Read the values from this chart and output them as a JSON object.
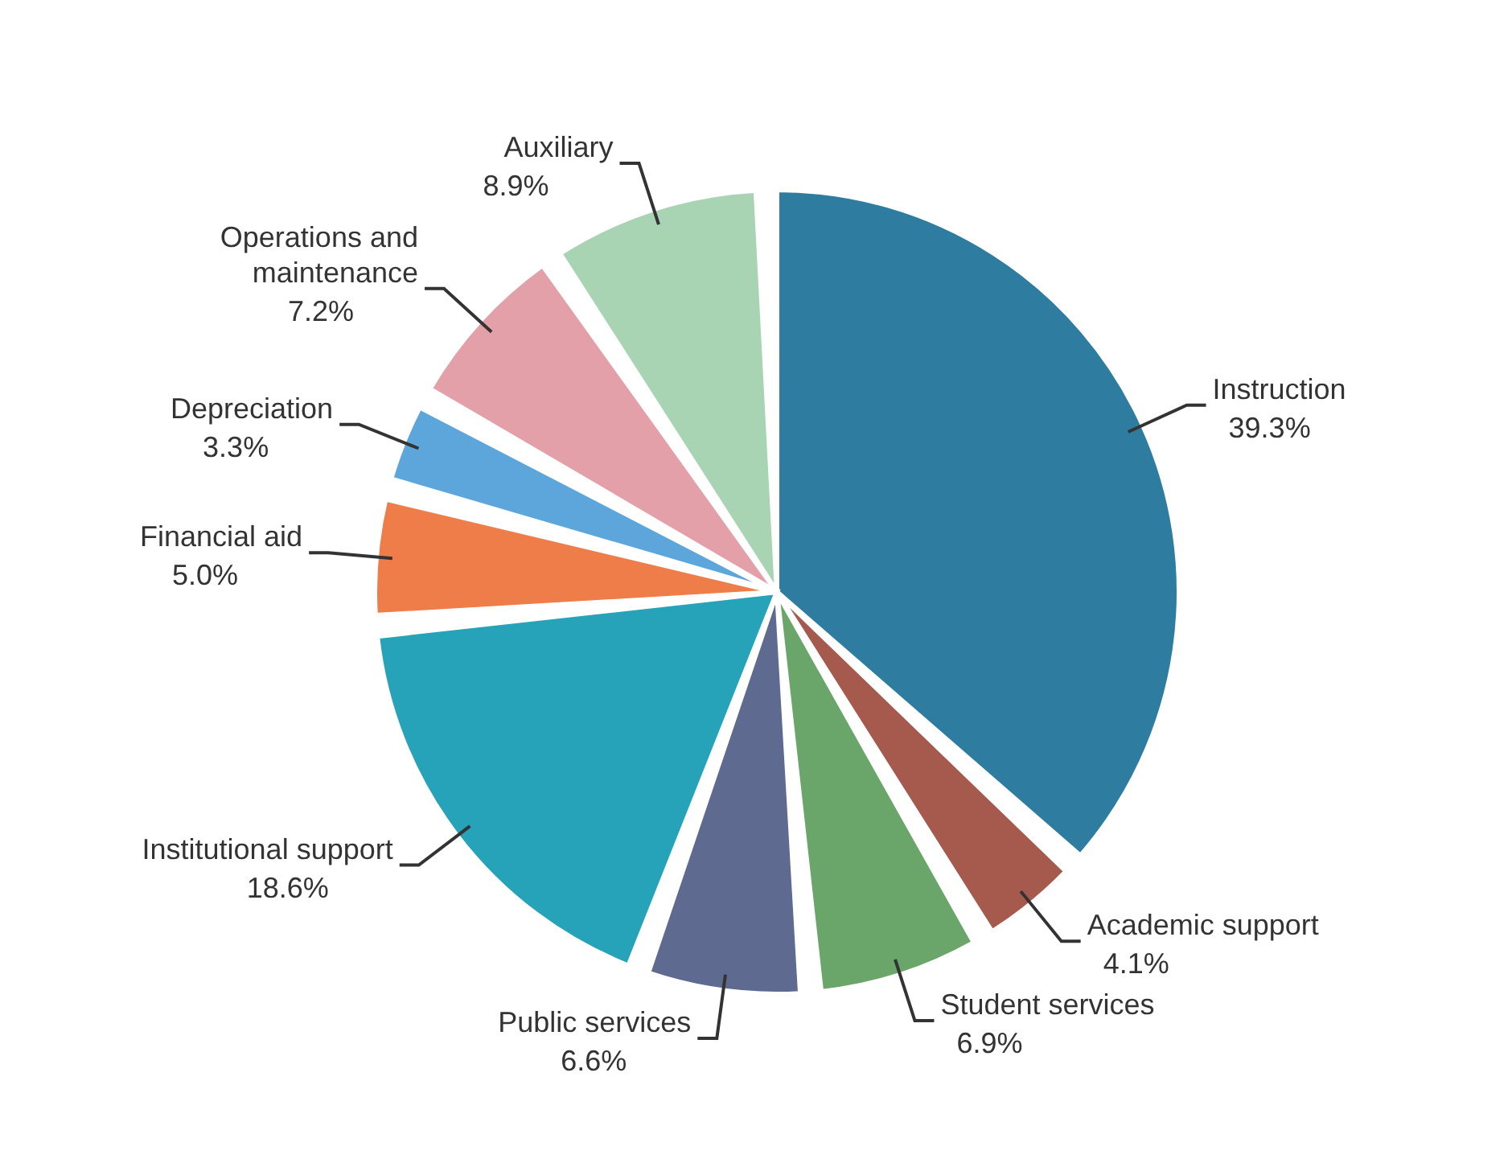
{
  "chart_data": {
    "type": "pie",
    "categories": [
      "Instruction",
      "Academic support",
      "Student services",
      "Public services",
      "Institutional support",
      "Financial aid",
      "Depreciation",
      "Operations and maintenance",
      "Auxiliary"
    ],
    "values": [
      39.3,
      4.1,
      6.9,
      6.6,
      18.6,
      5.0,
      3.3,
      7.2,
      8.9
    ],
    "value_labels": [
      "39.3%",
      "4.1%",
      "6.9%",
      "6.6%",
      "18.6%",
      "5.0%",
      "3.3%",
      "7.2%",
      "8.9%"
    ],
    "colors": [
      "#2e7ca0",
      "#a65a4e",
      "#6aa56a",
      "#5e6a90",
      "#26a3b8",
      "#ee7d4a",
      "#5da6dc",
      "#e3a0a8",
      "#a8d4b4"
    ],
    "legend": false
  }
}
